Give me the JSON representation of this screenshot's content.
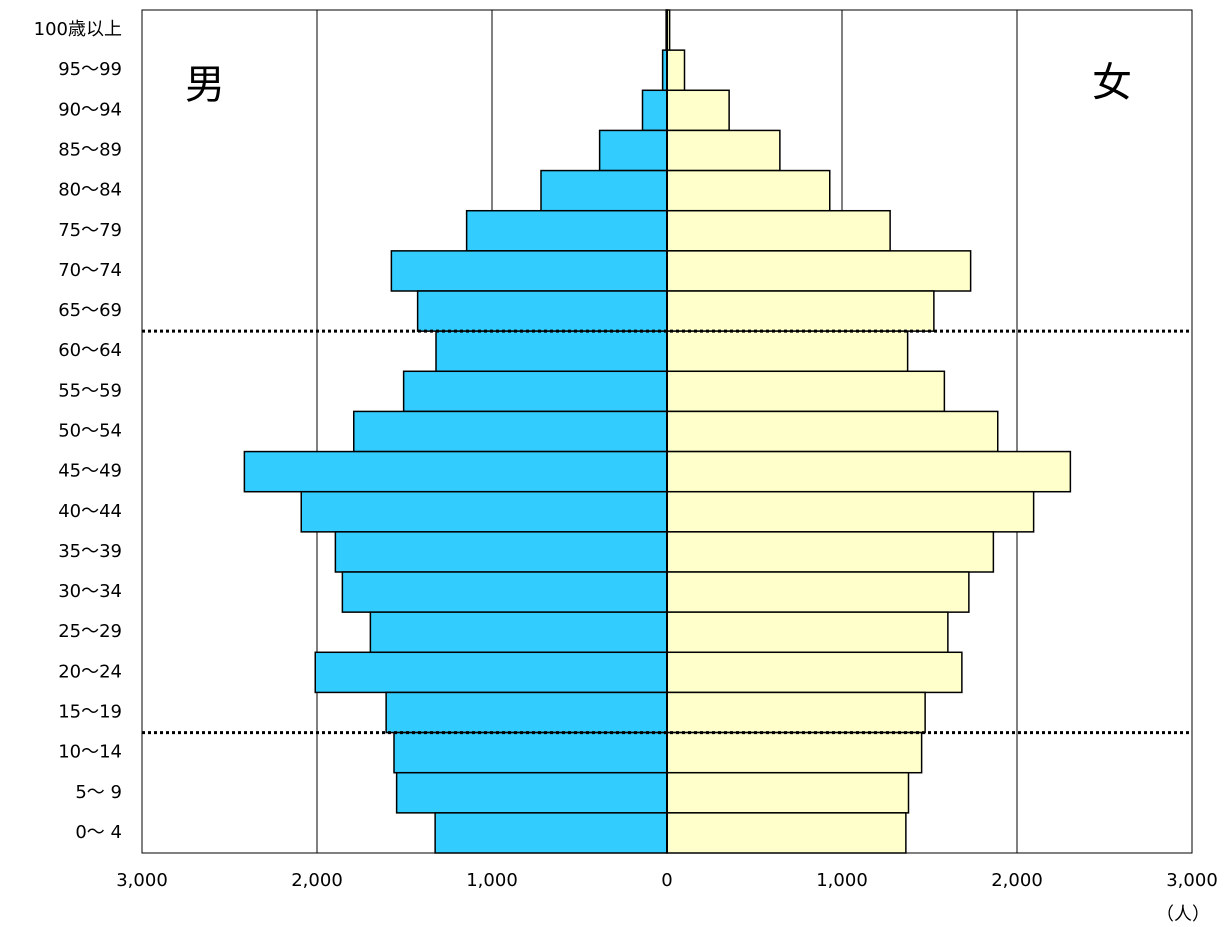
{
  "chart_data": {
    "type": "bar",
    "subtype": "population-pyramid",
    "categories": [
      "100歳以上",
      "95～99",
      "90～94",
      "85～89",
      "80～84",
      "75～79",
      "70～74",
      "65～69",
      "60～64",
      "55～59",
      "50～54",
      "45～49",
      "40～44",
      "35～39",
      "30～34",
      "25～29",
      "20～24",
      "15～19",
      "10～14",
      "5～ 9",
      "0～ 4"
    ],
    "series": [
      {
        "name": "男",
        "color": "#33CCFF",
        "values": [
          5,
          25,
          140,
          385,
          720,
          1145,
          1575,
          1425,
          1320,
          1505,
          1790,
          2415,
          2090,
          1895,
          1855,
          1695,
          2010,
          1605,
          1560,
          1545,
          1325
        ]
      },
      {
        "name": "女",
        "color": "#FFFFCC",
        "values": [
          15,
          100,
          355,
          645,
          930,
          1275,
          1735,
          1525,
          1375,
          1585,
          1890,
          2305,
          2095,
          1865,
          1725,
          1605,
          1685,
          1475,
          1455,
          1380,
          1365
        ]
      }
    ],
    "xlim": [
      -3000,
      3000
    ],
    "xticks": [
      -3000,
      -2000,
      -1000,
      0,
      1000,
      2000,
      3000
    ],
    "xtick_labels": [
      "3,000",
      "2,000",
      "1,000",
      "0",
      "1,000",
      "2,000",
      "3,000"
    ],
    "unit": "（人）",
    "left_label": "男",
    "right_label": "女",
    "grid": true,
    "dotted_dividers_below": [
      "65～69",
      "15～19"
    ]
  }
}
